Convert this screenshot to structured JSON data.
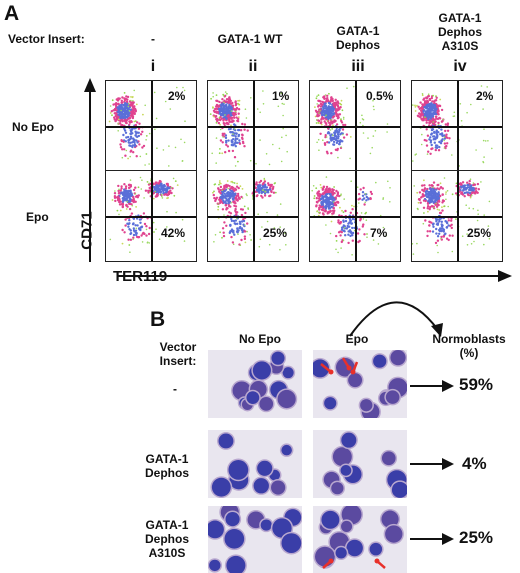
{
  "panel_a": {
    "letter": "A",
    "vector_insert_label": "Vector Insert:",
    "columns": [
      {
        "roman": "i",
        "insert": [
          "-"
        ]
      },
      {
        "roman": "ii",
        "insert": [
          "GATA-1 WT"
        ]
      },
      {
        "roman": "iii",
        "insert": [
          "GATA-1",
          "Dephos"
        ]
      },
      {
        "roman": "iv",
        "insert": [
          "GATA-1",
          "Dephos",
          "A310S"
        ]
      }
    ],
    "row_labels": [
      "No Epo",
      "Epo"
    ],
    "percentages": {
      "no_epo": [
        "2%",
        "1%",
        "0.5%",
        "2%"
      ],
      "epo": [
        "42%",
        "25%",
        "7%",
        "25%"
      ]
    },
    "y_axis_label": "CD71",
    "x_axis_label": "TER119"
  },
  "panel_b": {
    "letter": "B",
    "vector_insert_label": [
      "Vector",
      "Insert:"
    ],
    "column_headers": [
      "No Epo",
      "Epo",
      "Normoblasts",
      "(%)"
    ],
    "rows": [
      {
        "insert": [
          "-"
        ],
        "normoblasts": "59%"
      },
      {
        "insert": [
          "GATA-1",
          "Dephos"
        ],
        "normoblasts": "4%"
      },
      {
        "insert": [
          "GATA-1",
          "Dephos",
          "A310S"
        ],
        "normoblasts": "25%"
      }
    ]
  }
}
